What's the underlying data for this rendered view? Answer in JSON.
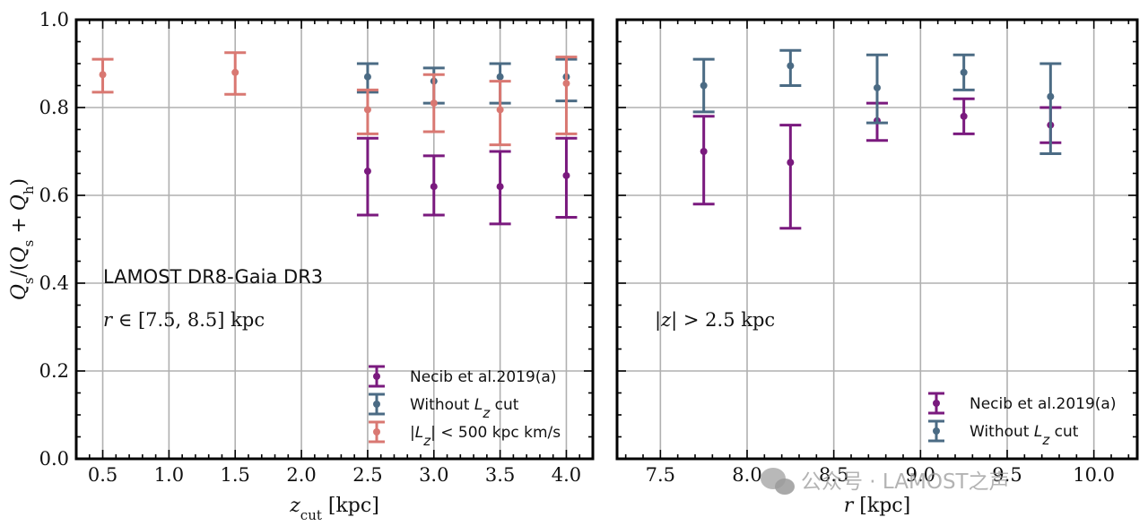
{
  "colors": {
    "necib": "#7a1a7e",
    "without_lz": "#4b6b84",
    "lz_500": "#d97872",
    "grid": "#b0b0b0",
    "watermark": "#9a9a9a"
  },
  "shared": {
    "ylabel": "Q_s/(Q_s + Q_h)",
    "ylim": [
      0.0,
      1.0
    ],
    "yticks": [
      "0.0",
      "0.2",
      "0.4",
      "0.6",
      "0.8",
      "1.0"
    ],
    "yvals": [
      0.0,
      0.2,
      0.4,
      0.6,
      0.8,
      1.0
    ],
    "grid": true
  },
  "chart_data": [
    {
      "type": "scatter",
      "xlabel": "z_cut [kpc]",
      "ylabel": "Q_s/(Q_s + Q_h)",
      "xlim": [
        0.3,
        4.2
      ],
      "ylim": [
        0.0,
        1.0
      ],
      "xticks": [
        "0.5",
        "1.0",
        "1.5",
        "2.0",
        "2.5",
        "3.0",
        "3.5",
        "4.0"
      ],
      "xvals": [
        0.5,
        1.0,
        1.5,
        2.0,
        2.5,
        3.0,
        3.5,
        4.0
      ],
      "annotations": [
        "LAMOST DR8-Gaia DR3",
        "r ∈ [7.5, 8.5] kpc"
      ],
      "legend_position": "lower-right",
      "series": [
        {
          "name": "Necib et al.2019(a)",
          "color": "#7a1a7e",
          "x": [
            2.5,
            3.0,
            3.5,
            4.0
          ],
          "y": [
            0.655,
            0.62,
            0.62,
            0.645
          ],
          "ylow": [
            0.555,
            0.555,
            0.535,
            0.55
          ],
          "yhigh": [
            0.73,
            0.69,
            0.7,
            0.73
          ]
        },
        {
          "name": "Without L_z cut",
          "color": "#4b6b84",
          "x": [
            2.5,
            3.0,
            3.5,
            4.0
          ],
          "y": [
            0.87,
            0.86,
            0.87,
            0.87
          ],
          "ylow": [
            0.835,
            0.81,
            0.81,
            0.815
          ],
          "yhigh": [
            0.9,
            0.89,
            0.9,
            0.91
          ]
        },
        {
          "name": "|L_z| < 500 kpc km/s",
          "color": "#d97872",
          "x": [
            0.5,
            1.5,
            2.5,
            3.0,
            3.5,
            4.0
          ],
          "y": [
            0.875,
            0.88,
            0.795,
            0.81,
            0.795,
            0.855
          ],
          "ylow": [
            0.835,
            0.83,
            0.74,
            0.745,
            0.715,
            0.74
          ],
          "yhigh": [
            0.91,
            0.925,
            0.84,
            0.875,
            0.86,
            0.915
          ]
        }
      ]
    },
    {
      "type": "scatter",
      "xlabel": "r [kpc]",
      "ylabel": "",
      "xlim": [
        7.25,
        10.25
      ],
      "ylim": [
        0.0,
        1.0
      ],
      "xticks": [
        "7.5",
        "8.0",
        "8.5",
        "9.0",
        "9.5",
        "10.0"
      ],
      "xvals": [
        7.5,
        8.0,
        8.5,
        9.0,
        9.5,
        10.0
      ],
      "annotations": [
        "|z| > 2.5 kpc"
      ],
      "legend_position": "lower-right",
      "series": [
        {
          "name": "Necib et al.2019(a)",
          "color": "#7a1a7e",
          "x": [
            7.75,
            8.25,
            8.75,
            9.25,
            9.75
          ],
          "y": [
            0.7,
            0.675,
            0.77,
            0.78,
            0.76
          ],
          "ylow": [
            0.58,
            0.525,
            0.725,
            0.74,
            0.72
          ],
          "yhigh": [
            0.78,
            0.76,
            0.81,
            0.82,
            0.8
          ]
        },
        {
          "name": "Without L_z cut",
          "color": "#4b6b84",
          "x": [
            7.75,
            8.25,
            8.75,
            9.25,
            9.75
          ],
          "y": [
            0.85,
            0.895,
            0.845,
            0.88,
            0.825
          ],
          "ylow": [
            0.79,
            0.85,
            0.765,
            0.84,
            0.695
          ],
          "yhigh": [
            0.91,
            0.93,
            0.92,
            0.92,
            0.9
          ]
        }
      ]
    }
  ],
  "watermark": {
    "text": "公众号 · LAMOST之声"
  }
}
